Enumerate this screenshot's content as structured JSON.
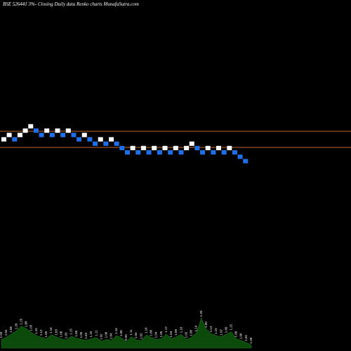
{
  "chart_data": {
    "type": "renko",
    "title": "BSE 526441 3%-  Closing Daily data  Renko  charts MunafaSutra.com",
    "reference_lines": {
      "upper": "#c0682f",
      "lower": "#c0682f"
    },
    "colors": {
      "up_brick": "#ffffff",
      "down_brick": "#1e6fe8",
      "volume": "#0c4a0c",
      "background": "#000000"
    },
    "bricks": [
      {
        "level": 3,
        "dir": "up"
      },
      {
        "level": 4,
        "dir": "up"
      },
      {
        "level": 3,
        "dir": "down"
      },
      {
        "level": 4,
        "dir": "up"
      },
      {
        "level": 5,
        "dir": "up"
      },
      {
        "level": 6,
        "dir": "up"
      },
      {
        "level": 5,
        "dir": "down"
      },
      {
        "level": 4,
        "dir": "down"
      },
      {
        "level": 5,
        "dir": "up"
      },
      {
        "level": 4,
        "dir": "down"
      },
      {
        "level": 5,
        "dir": "up"
      },
      {
        "level": 4,
        "dir": "down"
      },
      {
        "level": 5,
        "dir": "up"
      },
      {
        "level": 4,
        "dir": "down"
      },
      {
        "level": 3,
        "dir": "down"
      },
      {
        "level": 4,
        "dir": "up"
      },
      {
        "level": 3,
        "dir": "down"
      },
      {
        "level": 2,
        "dir": "down"
      },
      {
        "level": 3,
        "dir": "up"
      },
      {
        "level": 2,
        "dir": "down"
      },
      {
        "level": 3,
        "dir": "up"
      },
      {
        "level": 2,
        "dir": "down"
      },
      {
        "level": 1,
        "dir": "down"
      },
      {
        "level": 0,
        "dir": "down"
      },
      {
        "level": 1,
        "dir": "up"
      },
      {
        "level": 0,
        "dir": "down"
      },
      {
        "level": 1,
        "dir": "up"
      },
      {
        "level": 0,
        "dir": "down"
      },
      {
        "level": 1,
        "dir": "up"
      },
      {
        "level": 0,
        "dir": "down"
      },
      {
        "level": 1,
        "dir": "up"
      },
      {
        "level": 0,
        "dir": "down"
      },
      {
        "level": 1,
        "dir": "up"
      },
      {
        "level": 0,
        "dir": "down"
      },
      {
        "level": 1,
        "dir": "up"
      },
      {
        "level": 2,
        "dir": "up"
      },
      {
        "level": 1,
        "dir": "down"
      },
      {
        "level": 0,
        "dir": "down"
      },
      {
        "level": 1,
        "dir": "up"
      },
      {
        "level": 0,
        "dir": "down"
      },
      {
        "level": 1,
        "dir": "up"
      },
      {
        "level": 0,
        "dir": "down"
      },
      {
        "level": 1,
        "dir": "up"
      },
      {
        "level": 0,
        "dir": "down"
      },
      {
        "level": -1,
        "dir": "down"
      },
      {
        "level": -2,
        "dir": "down"
      }
    ],
    "volume_labels": [
      "1.03",
      "1.04",
      "1.05",
      "1.20",
      "1.25",
      "1.08",
      "1.03",
      "1.15",
      "1.12",
      "1.05",
      "1.16",
      "1.03",
      "1.08",
      "1.03",
      "1.15",
      "1.06",
      "1.05",
      "1.03",
      "1.10",
      "1.11",
      "1.02",
      "1.06",
      "1.04",
      "1.16",
      "1.08",
      "0.99",
      "1.11",
      "1.04",
      "1.02",
      "1.16",
      "1.08",
      "1.04",
      "1.05",
      "1.17",
      "1.04",
      "1.09",
      "1.16",
      "1.02",
      "1.08",
      "1.14",
      "1.20",
      "1.00",
      "1.13",
      "1.15",
      "1.07",
      "1.09",
      "1.15",
      "1.00",
      "1.06",
      "1.02",
      "1.00"
    ],
    "volume_heights": [
      0.28,
      0.35,
      0.45,
      0.55,
      0.7,
      0.62,
      0.5,
      0.4,
      0.35,
      0.3,
      0.42,
      0.36,
      0.3,
      0.26,
      0.38,
      0.32,
      0.28,
      0.25,
      0.3,
      0.34,
      0.22,
      0.28,
      0.24,
      0.4,
      0.33,
      0.2,
      0.36,
      0.26,
      0.24,
      0.42,
      0.34,
      0.28,
      0.3,
      0.45,
      0.3,
      0.36,
      0.44,
      0.28,
      0.34,
      0.48,
      0.95,
      0.6,
      0.46,
      0.4,
      0.36,
      0.44,
      0.52,
      0.3,
      0.24,
      0.18,
      0.1
    ]
  }
}
